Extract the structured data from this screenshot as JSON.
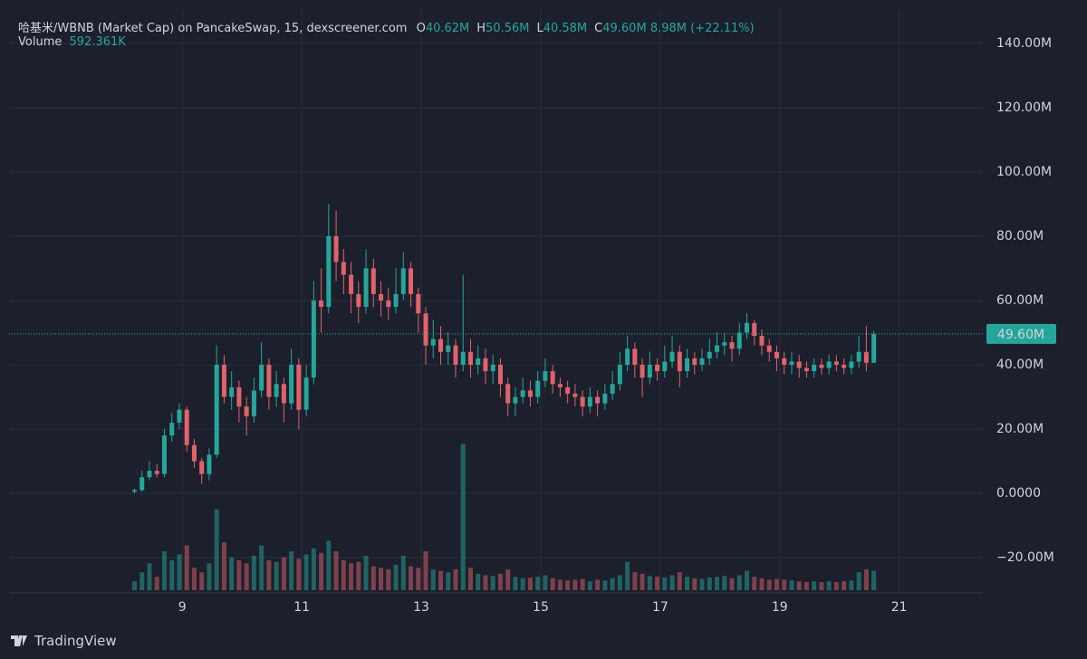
{
  "chart_data": {
    "type": "candlestick",
    "title": "哈基米/WBNB (Market Cap) on PancakeSwap, 15, dexscreener.com",
    "ohlc": [
      {
        "key": "O",
        "value": "40.62M"
      },
      {
        "key": "H",
        "value": "50.56M"
      },
      {
        "key": "L",
        "value": "40.58M"
      },
      {
        "key": "C",
        "value": "49.60M"
      }
    ],
    "change": "8.98M (+22.11%)",
    "volume_label": "Volume",
    "volume_value": "592.361K",
    "branding": "TradingView",
    "up_color": "#26a69a",
    "down_color": "#e0626b",
    "grid": true,
    "xlim": [
      6.1,
      22.4
    ],
    "xticks": [
      9,
      11,
      13,
      15,
      17,
      19,
      21
    ],
    "ylim": [
      -31,
      150.7
    ],
    "yticks": [
      {
        "value": 140,
        "label": "140.00M"
      },
      {
        "value": 120,
        "label": "120.00M"
      },
      {
        "value": 100,
        "label": "100.00M"
      },
      {
        "value": 80,
        "label": "80.00M"
      },
      {
        "value": 60,
        "label": "60.00M"
      },
      {
        "value": 40,
        "label": "40.00M"
      },
      {
        "value": 20,
        "label": "20.00M"
      },
      {
        "value": 0,
        "label": "0.0000"
      },
      {
        "value": -20,
        "label": "−20.00M"
      }
    ],
    "last_price": {
      "value": 49.6,
      "label": "49.60M"
    },
    "volume_ylim": [
      0,
      1000
    ],
    "x": [
      8.2,
      8.325,
      8.45,
      8.575,
      8.7,
      8.825,
      8.95,
      9.075,
      9.2,
      9.325,
      9.45,
      9.575,
      9.7,
      9.825,
      9.95,
      10.075,
      10.2,
      10.325,
      10.45,
      10.575,
      10.7,
      10.825,
      10.95,
      11.075,
      11.2,
      11.325,
      11.45,
      11.575,
      11.7,
      11.825,
      11.95,
      12.075,
      12.2,
      12.325,
      12.45,
      12.575,
      12.7,
      12.825,
      12.95,
      13.075,
      13.2,
      13.325,
      13.45,
      13.575,
      13.7,
      13.825,
      13.95,
      14.075,
      14.2,
      14.325,
      14.45,
      14.575,
      14.7,
      14.825,
      14.95,
      15.075,
      15.2,
      15.325,
      15.45,
      15.575,
      15.7,
      15.825,
      15.95,
      16.075,
      16.2,
      16.325,
      16.45,
      16.575,
      16.7,
      16.825,
      16.95,
      17.075,
      17.2,
      17.325,
      17.45,
      17.575,
      17.7,
      17.825,
      17.95,
      18.075,
      18.2,
      18.325,
      18.45,
      18.575,
      18.7,
      18.825,
      18.95,
      19.075,
      19.2,
      19.325,
      19.45,
      19.575,
      19.7,
      19.825,
      19.95,
      20.075,
      20.2,
      20.325,
      20.45,
      20.575
    ],
    "open": [
      0.5,
      1,
      5,
      7,
      6,
      18,
      22,
      26,
      15,
      10,
      6,
      12,
      40,
      30,
      33,
      27,
      24,
      32,
      40,
      30,
      34,
      28,
      40,
      26,
      36,
      60,
      58,
      80,
      72,
      68,
      62,
      58,
      70,
      62,
      60,
      58,
      62,
      70,
      62,
      56,
      46,
      48,
      44,
      46,
      40,
      44,
      40,
      42,
      38,
      40,
      34,
      28,
      30,
      32,
      30,
      35,
      38,
      34,
      33,
      31,
      30,
      27,
      30,
      28,
      31,
      34,
      40,
      45,
      40,
      36,
      40,
      38,
      41,
      44,
      38,
      42,
      40,
      42,
      44,
      46,
      47,
      45,
      50,
      53,
      49,
      46,
      44,
      42,
      40,
      41,
      39,
      38,
      40,
      39,
      41,
      40,
      39,
      41,
      44,
      40.62
    ],
    "high": [
      1.5,
      7,
      10,
      9,
      20,
      25,
      28,
      27,
      17,
      11,
      14,
      46,
      43,
      38,
      35,
      30,
      36,
      47,
      42,
      38,
      36,
      45,
      42,
      40,
      66,
      70,
      90,
      88,
      76,
      72,
      66,
      76,
      73,
      66,
      64,
      70,
      75,
      72,
      64,
      58,
      54,
      52,
      50,
      48,
      68,
      48,
      46,
      45,
      43,
      42,
      36,
      33,
      36,
      35,
      38,
      42,
      40,
      36,
      35,
      34,
      32,
      33,
      32,
      34,
      38,
      44,
      49,
      47,
      42,
      44,
      42,
      46,
      49,
      46,
      45,
      44,
      45,
      48,
      50,
      50,
      49,
      53,
      56,
      54,
      51,
      48,
      46,
      44,
      44,
      43,
      41,
      42,
      42,
      43,
      43,
      42,
      43,
      49,
      52,
      50.56
    ],
    "low": [
      0,
      0.5,
      4,
      5,
      5,
      16,
      20,
      13,
      8,
      3,
      4,
      11,
      28,
      26,
      22,
      18,
      22,
      30,
      26,
      27,
      22,
      26,
      20,
      24,
      34,
      50,
      56,
      66,
      62,
      56,
      53,
      56,
      58,
      55,
      54,
      56,
      60,
      58,
      50,
      40,
      42,
      40,
      40,
      36,
      38,
      36,
      37,
      34,
      34,
      30,
      24,
      24,
      28,
      27,
      28,
      33,
      31,
      30,
      28,
      27,
      24,
      25,
      24,
      26,
      29,
      32,
      38,
      36,
      30,
      34,
      35,
      36,
      39,
      33,
      36,
      37,
      38,
      40,
      42,
      43,
      41,
      43,
      48,
      46,
      43,
      41,
      38,
      37,
      37,
      36,
      36,
      36,
      37,
      37,
      38,
      37,
      37,
      39,
      38,
      40.58
    ],
    "close": [
      1,
      5,
      7,
      6,
      18,
      22,
      26,
      15,
      10,
      6,
      12,
      40,
      30,
      33,
      27,
      24,
      32,
      40,
      30,
      34,
      28,
      40,
      26,
      36,
      60,
      58,
      80,
      72,
      68,
      62,
      58,
      70,
      62,
      60,
      58,
      62,
      70,
      62,
      56,
      46,
      48,
      44,
      46,
      40,
      44,
      40,
      42,
      38,
      40,
      34,
      28,
      30,
      32,
      30,
      35,
      38,
      34,
      33,
      31,
      30,
      27,
      30,
      28,
      31,
      34,
      40,
      45,
      40,
      36,
      40,
      38,
      41,
      44,
      38,
      42,
      40,
      42,
      44,
      46,
      47,
      45,
      50,
      53,
      49,
      46,
      44,
      42,
      40,
      41,
      39,
      38,
      40,
      39,
      41,
      40,
      39,
      41,
      44,
      40.62,
      49.6
    ],
    "volume": [
      60,
      120,
      180,
      90,
      260,
      200,
      240,
      300,
      150,
      120,
      180,
      540,
      320,
      220,
      200,
      180,
      230,
      300,
      200,
      190,
      220,
      260,
      210,
      240,
      280,
      250,
      330,
      260,
      200,
      180,
      190,
      230,
      160,
      150,
      140,
      170,
      230,
      160,
      150,
      260,
      140,
      130,
      120,
      140,
      980,
      150,
      110,
      100,
      95,
      110,
      140,
      90,
      80,
      85,
      90,
      100,
      80,
      70,
      65,
      70,
      75,
      60,
      70,
      65,
      80,
      100,
      190,
      120,
      110,
      95,
      90,
      85,
      100,
      120,
      90,
      80,
      75,
      85,
      90,
      95,
      80,
      100,
      130,
      90,
      80,
      70,
      75,
      70,
      65,
      60,
      55,
      60,
      55,
      60,
      55,
      60,
      65,
      120,
      140,
      130
    ]
  }
}
